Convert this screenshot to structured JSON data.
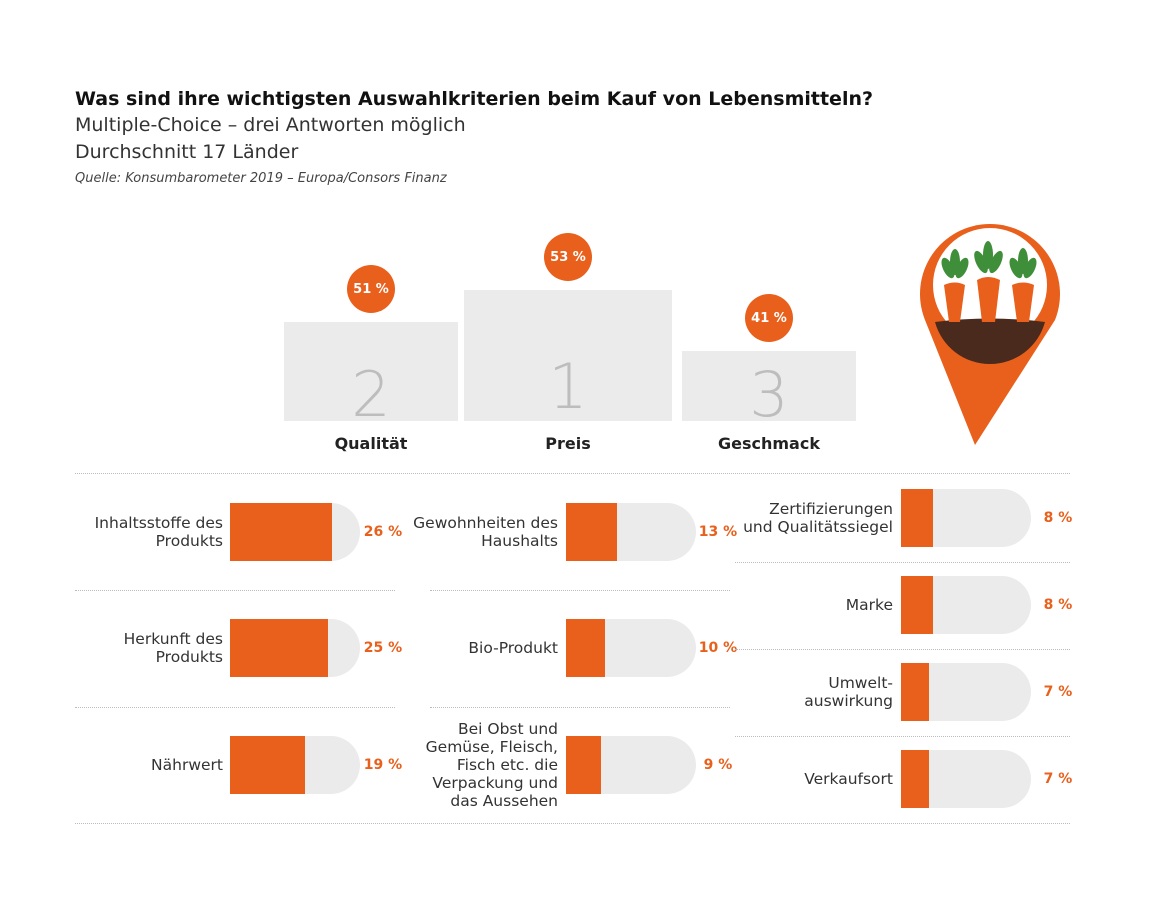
{
  "header": {
    "title": "Was sind ihre wichtigsten Auswahlkriterien beim Kauf von Lebensmitteln?",
    "subtitle": [
      "Multiple-Choice – drei Antworten möglich",
      "Durchschnitt 17 Länder"
    ],
    "source": "Quelle: Konsumbarometer 2019 – Europa/Consors Finanz"
  },
  "chart_data": [
    {
      "type": "podium",
      "categories": [
        "Qualität",
        "Preis",
        "Geschmack"
      ],
      "ranks": [
        2,
        1,
        3
      ],
      "values": [
        51,
        53,
        41
      ],
      "value_labels": [
        "51 %",
        "53 %",
        "41 %"
      ],
      "color": "#e8601c"
    },
    {
      "type": "bar",
      "categories": [
        "Inhaltsstoffe des Produkts",
        "Herkunft des Produkts",
        "Nährwert"
      ],
      "values": [
        26,
        25,
        19
      ],
      "value_labels": [
        "26 %",
        "25 %",
        "19 %"
      ],
      "xlim": [
        0,
        33
      ],
      "color": "#e8601c"
    },
    {
      "type": "bar",
      "categories": [
        "Gewohnheiten des Haushalts",
        "Bio-Produkt",
        "Bei Obst und Gemüse, Fleisch, Fisch etc. die Verpackung und das Aussehen"
      ],
      "values": [
        13,
        10,
        9
      ],
      "value_labels": [
        "13 %",
        "10 %",
        "9 %"
      ],
      "xlim": [
        0,
        33
      ],
      "color": "#e8601c"
    },
    {
      "type": "bar",
      "categories": [
        "Zertifizierungen und Qualitätssiegel",
        "Marke",
        "Umwelt-auswirkung",
        "Verkaufsort"
      ],
      "values": [
        8,
        8,
        7,
        7
      ],
      "value_labels": [
        "8 %",
        "8 %",
        "7 %",
        "7 %"
      ],
      "xlim": [
        0,
        33
      ],
      "color": "#e8601c"
    }
  ]
}
